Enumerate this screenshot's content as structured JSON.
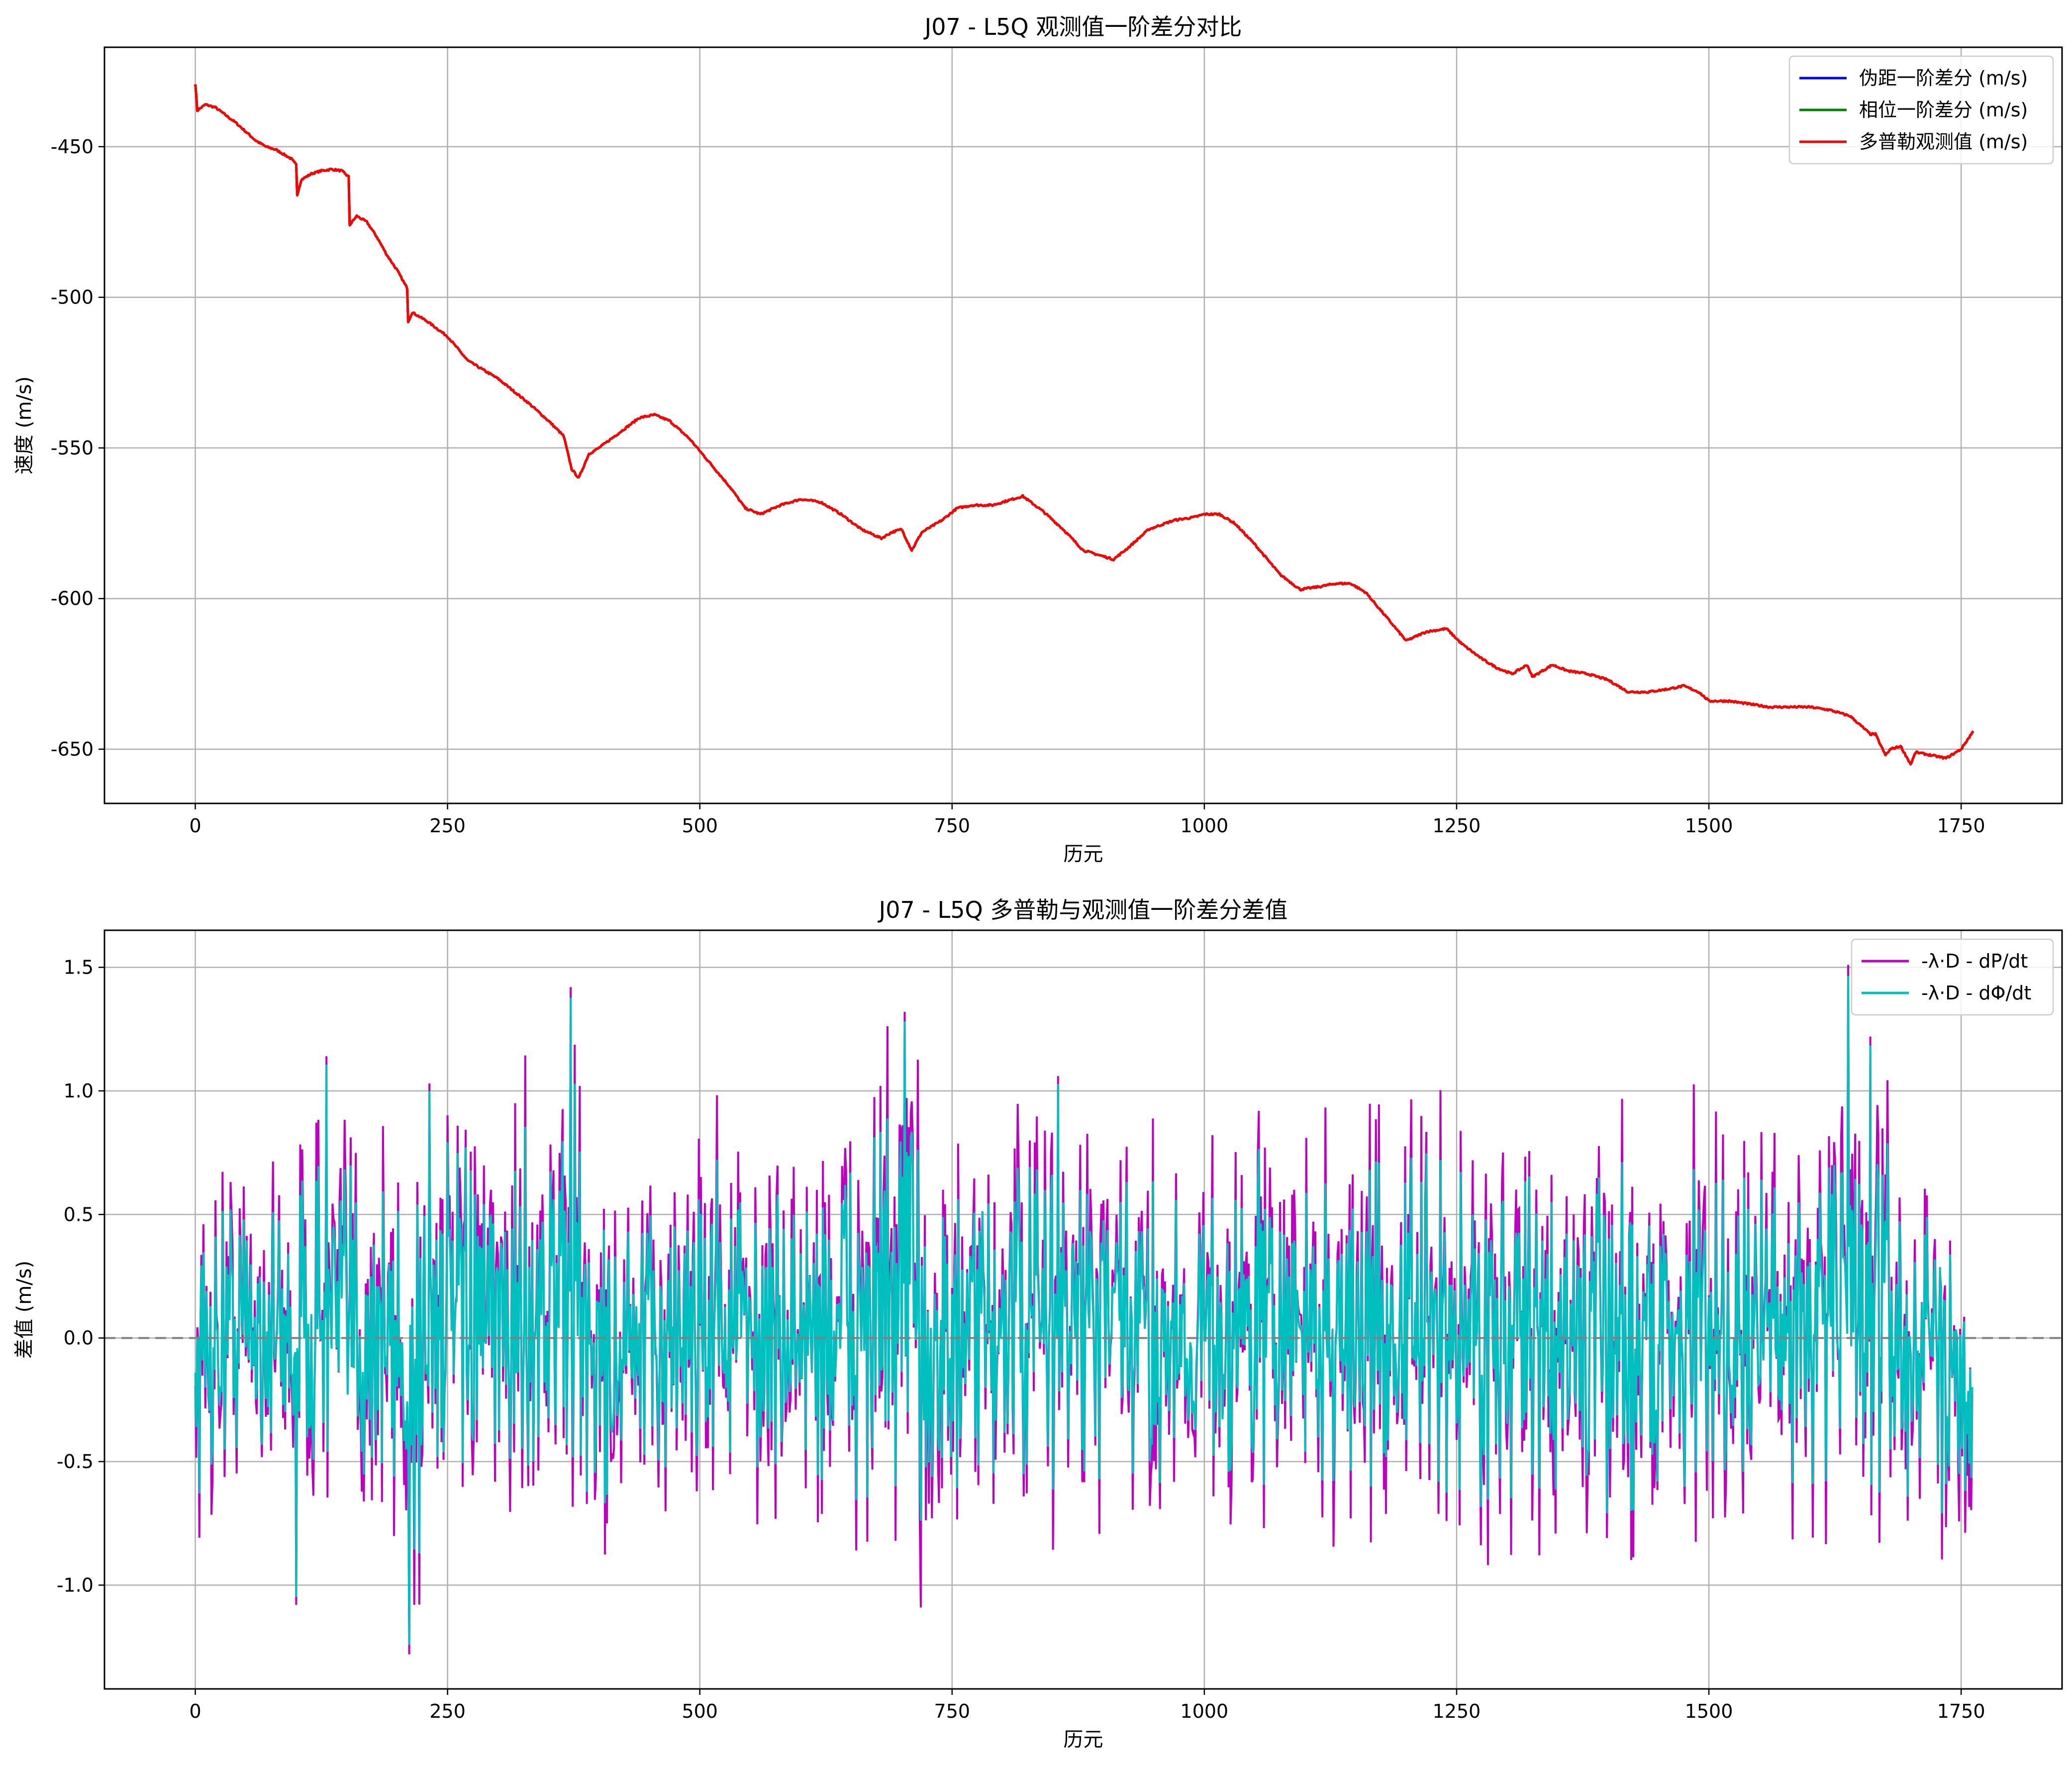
{
  "chart_data": [
    {
      "type": "line",
      "title": "J07 - L5Q 观测值一阶差分对比",
      "xlabel": "历元",
      "ylabel": "速度 (m/s)",
      "xlim": [
        -90,
        1850
      ],
      "ylim": [
        -668,
        -417
      ],
      "xticks": [
        0,
        250,
        500,
        750,
        1000,
        1250,
        1500,
        1750
      ],
      "yticks": [
        -650,
        -600,
        -550,
        -500,
        -450
      ],
      "ytick_labels": [
        "-650",
        "-600",
        "-550",
        "-500",
        "-450"
      ],
      "grid": true,
      "legend_position": "top-right",
      "series": [
        {
          "name": "伪距一阶差分 (m/s)",
          "color": "#0000ff",
          "shares_points_with": "多普勒观测值 (m/s)"
        },
        {
          "name": "相位一阶差分 (m/s)",
          "color": "#008000",
          "shares_points_with": "多普勒观测值 (m/s)"
        },
        {
          "name": "多普勒观测值 (m/s)",
          "color": "#ff0000",
          "points": [
            [
              0,
              -429
            ],
            [
              2,
              -438
            ],
            [
              10,
              -436
            ],
            [
              20,
              -437
            ],
            [
              40,
              -442
            ],
            [
              60,
              -448
            ],
            [
              70,
              -450
            ],
            [
              80,
              -451
            ],
            [
              95,
              -454
            ],
            [
              100,
              -456
            ],
            [
              101,
              -466
            ],
            [
              105,
              -461
            ],
            [
              115,
              -459
            ],
            [
              125,
              -458
            ],
            [
              135,
              -457.5
            ],
            [
              145,
              -458
            ],
            [
              152,
              -460
            ],
            [
              153,
              -476
            ],
            [
              160,
              -473
            ],
            [
              170,
              -475
            ],
            [
              180,
              -480
            ],
            [
              190,
              -486
            ],
            [
              200,
              -491
            ],
            [
              210,
              -497
            ],
            [
              211,
              -508
            ],
            [
              215,
              -505
            ],
            [
              230,
              -508
            ],
            [
              250,
              -513
            ],
            [
              270,
              -521
            ],
            [
              300,
              -527
            ],
            [
              330,
              -535
            ],
            [
              350,
              -541
            ],
            [
              365,
              -546
            ],
            [
              373,
              -557
            ],
            [
              380,
              -560
            ],
            [
              390,
              -552
            ],
            [
              400,
              -550
            ],
            [
              420,
              -545
            ],
            [
              440,
              -540
            ],
            [
              455,
              -539
            ],
            [
              470,
              -541
            ],
            [
              490,
              -547
            ],
            [
              510,
              -555
            ],
            [
              530,
              -563
            ],
            [
              545,
              -570
            ],
            [
              560,
              -572
            ],
            [
              580,
              -569
            ],
            [
              600,
              -567
            ],
            [
              620,
              -568
            ],
            [
              640,
              -572
            ],
            [
              660,
              -577
            ],
            [
              680,
              -580
            ],
            [
              690,
              -578
            ],
            [
              700,
              -577
            ],
            [
              710,
              -584
            ],
            [
              720,
              -578
            ],
            [
              740,
              -574
            ],
            [
              755,
              -570
            ],
            [
              770,
              -569
            ],
            [
              790,
              -569
            ],
            [
              810,
              -567
            ],
            [
              820,
              -566
            ],
            [
              840,
              -571
            ],
            [
              860,
              -577
            ],
            [
              880,
              -584
            ],
            [
              900,
              -586
            ],
            [
              910,
              -587
            ],
            [
              925,
              -583
            ],
            [
              945,
              -577
            ],
            [
              970,
              -574
            ],
            [
              990,
              -573
            ],
            [
              1000,
              -572
            ],
            [
              1015,
              -572
            ],
            [
              1030,
              -575
            ],
            [
              1050,
              -582
            ],
            [
              1075,
              -592
            ],
            [
              1095,
              -597
            ],
            [
              1115,
              -596
            ],
            [
              1130,
              -595
            ],
            [
              1145,
              -595
            ],
            [
              1160,
              -598
            ],
            [
              1180,
              -606
            ],
            [
              1200,
              -614
            ],
            [
              1220,
              -611
            ],
            [
              1240,
              -610
            ],
            [
              1255,
              -615
            ],
            [
              1275,
              -620
            ],
            [
              1290,
              -623
            ],
            [
              1305,
              -625
            ],
            [
              1320,
              -622
            ],
            [
              1325,
              -626
            ],
            [
              1345,
              -622
            ],
            [
              1360,
              -624
            ],
            [
              1380,
              -625
            ],
            [
              1400,
              -627
            ],
            [
              1420,
              -631
            ],
            [
              1440,
              -631
            ],
            [
              1460,
              -630
            ],
            [
              1475,
              -629
            ],
            [
              1490,
              -631
            ],
            [
              1500,
              -634
            ],
            [
              1520,
              -634
            ],
            [
              1540,
              -635
            ],
            [
              1560,
              -636
            ],
            [
              1580,
              -636
            ],
            [
              1600,
              -636
            ],
            [
              1620,
              -637
            ],
            [
              1640,
              -639
            ],
            [
              1660,
              -645
            ],
            [
              1665,
              -645
            ],
            [
              1675,
              -652
            ],
            [
              1680,
              -650
            ],
            [
              1690,
              -649
            ],
            [
              1700,
              -655
            ],
            [
              1705,
              -651
            ],
            [
              1720,
              -652
            ],
            [
              1735,
              -653
            ],
            [
              1750,
              -650
            ],
            [
              1762,
              -644
            ]
          ]
        }
      ]
    },
    {
      "type": "line",
      "title": "J07 - L5Q 多普勒与观测值一阶差分差值",
      "xlabel": "历元",
      "ylabel": "差值 (m/s)",
      "xlim": [
        -90,
        1850
      ],
      "ylim": [
        -1.42,
        1.65
      ],
      "xticks": [
        0,
        250,
        500,
        750,
        1000,
        1250,
        1500,
        1750
      ],
      "yticks": [
        -1.0,
        -0.5,
        0.0,
        0.5,
        1.0,
        1.5
      ],
      "ytick_labels": [
        "-1.0",
        "-0.5",
        "0.0",
        "0.5",
        "1.0",
        "1.5"
      ],
      "grid": true,
      "reference_line": {
        "y": 0.0,
        "style": "dashed",
        "color": "#808080"
      },
      "legend_position": "top-right",
      "epoch_count": 1762,
      "series": [
        {
          "name": "-λ·D - dP/dt",
          "color": "#c000c0",
          "noise_sigma": 0.3,
          "wide_extremes": 0.3
        },
        {
          "name": "-λ·D - dΦ/dt",
          "color": "#00bfbf",
          "noise_sigma": 0.26,
          "wide_extremes": 0
        }
      ],
      "envelope": {
        "epochs": [
          0,
          40,
          90,
          130,
          180,
          215,
          240,
          300,
          370,
          400,
          460,
          510,
          560,
          620,
          700,
          750,
          800,
          860,
          930,
          1000,
          1060,
          1120,
          1200,
          1280,
          1340,
          1420,
          1500,
          1560,
          1640,
          1700,
          1762
        ],
        "upper": [
          0.45,
          0.8,
          0.6,
          0.95,
          0.9,
          0.7,
          1.0,
          0.7,
          1.4,
          0.5,
          0.6,
          1.0,
          0.6,
          0.8,
          1.3,
          0.6,
          0.8,
          1.05,
          0.75,
          0.7,
          0.9,
          0.75,
          0.85,
          0.9,
          0.65,
          0.85,
          0.8,
          0.75,
          1.5,
          0.6,
          0.45
        ],
        "lower": [
          -0.85,
          -0.5,
          -0.6,
          -0.6,
          -0.8,
          -1.25,
          -0.55,
          -0.6,
          -0.6,
          -0.85,
          -0.7,
          -0.55,
          -0.6,
          -0.7,
          -0.85,
          -0.9,
          -0.6,
          -0.7,
          -0.7,
          -0.6,
          -0.7,
          -0.65,
          -0.7,
          -0.8,
          -0.7,
          -0.85,
          -0.6,
          -0.65,
          -0.7,
          -0.75,
          -0.85
        ]
      },
      "spikes": [
        {
          "x": 100,
          "y": -1.08
        },
        {
          "x": 130,
          "y": 1.14
        },
        {
          "x": 212,
          "y": -1.28
        },
        {
          "x": 232,
          "y": 1.03
        },
        {
          "x": 372,
          "y": 1.42
        },
        {
          "x": 703,
          "y": 1.32
        },
        {
          "x": 855,
          "y": 1.06
        },
        {
          "x": 1638,
          "y": 1.51
        },
        {
          "x": 1660,
          "y": 1.22
        }
      ]
    }
  ]
}
